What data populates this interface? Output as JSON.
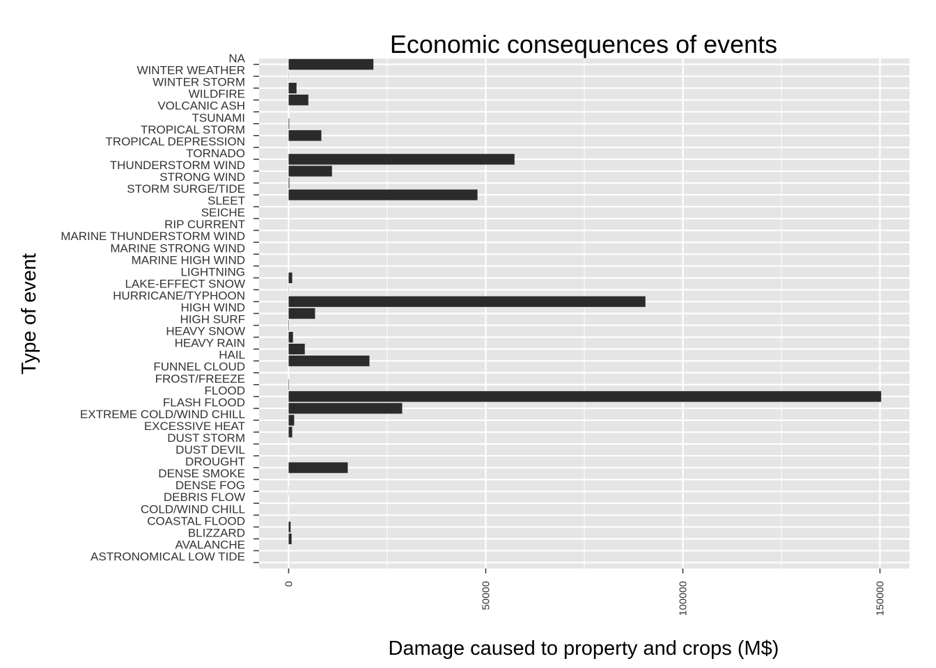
{
  "chart_data": {
    "type": "bar",
    "orientation": "horizontal",
    "title": "Economic consequences of events",
    "xlabel": "Damage caused to property and crops (M$)",
    "ylabel": "Type of event",
    "xlim": [
      -7500,
      157500
    ],
    "x_ticks": [
      "0",
      "50000",
      "100000",
      "150000"
    ],
    "x_tick_values": [
      0,
      50000,
      100000,
      150000
    ],
    "grid": true,
    "legend": "none",
    "colors": {
      "panel": "#e5e5e5",
      "grid": "#ffffff",
      "bar": "#2b2b2b"
    },
    "categories": [
      "NA",
      "WINTER WEATHER",
      "WINTER STORM",
      "WILDFIRE",
      "VOLCANIC ASH",
      "TSUNAMI",
      "TROPICAL STORM",
      "TROPICAL DEPRESSION",
      "TORNADO",
      "THUNDERSTORM WIND",
      "STRONG WIND",
      "STORM SURGE/TIDE",
      "SLEET",
      "SEICHE",
      "RIP CURRENT",
      "MARINE THUNDERSTORM WIND",
      "MARINE STRONG WIND",
      "MARINE HIGH WIND",
      "LIGHTNING",
      "LAKE-EFFECT SNOW",
      "HURRICANE/TYPHOON",
      "HIGH WIND",
      "HIGH SURF",
      "HEAVY SNOW",
      "HEAVY RAIN",
      "HAIL",
      "FUNNEL CLOUD",
      "FROST/FREEZE",
      "FLOOD",
      "FLASH FLOOD",
      "EXTREME COLD/WIND CHILL",
      "EXCESSIVE HEAT",
      "DUST STORM",
      "DUST DEVIL",
      "DROUGHT",
      "DENSE SMOKE",
      "DENSE FOG",
      "DEBRIS FLOW",
      "COLD/WIND CHILL",
      "COASTAL FLOOD",
      "BLIZZARD",
      "AVALANCHE",
      "ASTRONOMICAL LOW TIDE"
    ],
    "values": [
      21500,
      40,
      2000,
      5000,
      0,
      150,
      8300,
      2,
      57300,
      11000,
      180,
      47900,
      0,
      0,
      0,
      0,
      0,
      0,
      900,
      40,
      90500,
      6700,
      90,
      1100,
      4100,
      20500,
      0,
      100,
      150300,
      28800,
      1400,
      900,
      0,
      0,
      15000,
      0,
      20,
      0,
      10,
      500,
      750,
      0,
      0
    ]
  }
}
